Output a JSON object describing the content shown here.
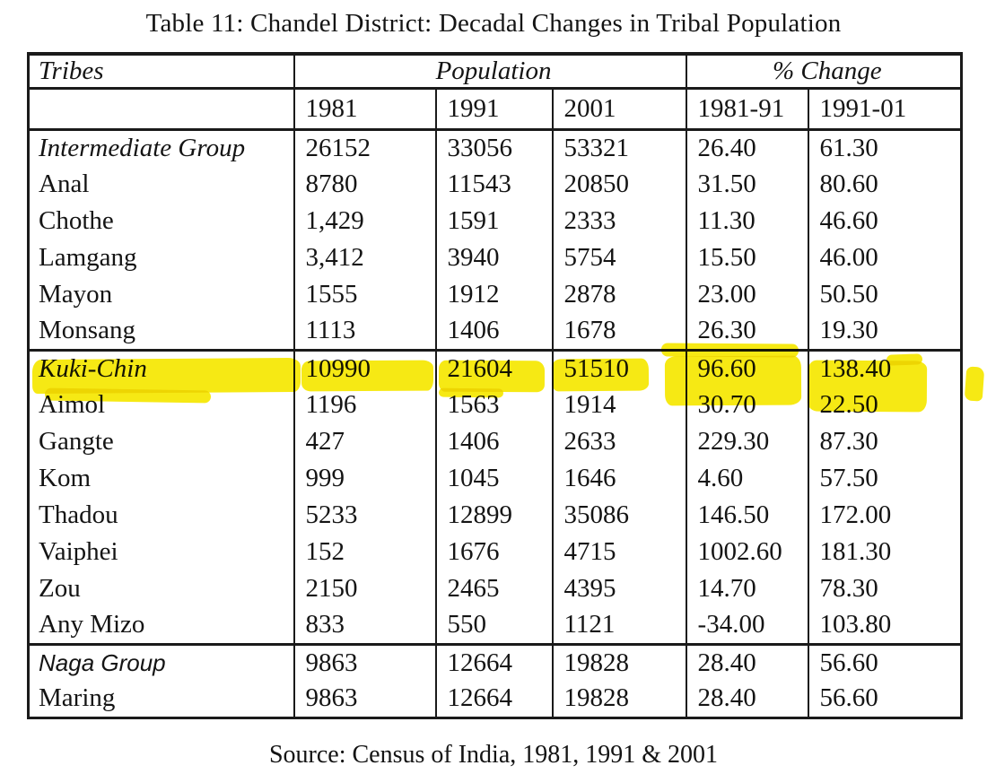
{
  "title": "Table 11: Chandel District: Decadal Changes in Tribal Population",
  "source_note": "Source: Census of India, 1981, 1991 & 2001",
  "highlight_color": "#f6e800",
  "table": {
    "columns": {
      "tribes_label": "Tribes",
      "population_label": "Population",
      "pct_change_label": "% Change",
      "year_headers": [
        "1981",
        "1991",
        "2001"
      ],
      "change_headers": [
        "1981-91",
        "1991-01"
      ]
    },
    "rows": [
      {
        "tribe": "Intermediate Group",
        "style": "group-serif",
        "highlighted": false,
        "group_end": false,
        "values": [
          "26152",
          "33056",
          "53321",
          "26.40",
          "61.30"
        ]
      },
      {
        "tribe": "Anal",
        "style": "normal",
        "highlighted": false,
        "group_end": false,
        "values": [
          "8780",
          "11543",
          "20850",
          "31.50",
          "80.60"
        ]
      },
      {
        "tribe": "Chothe",
        "style": "normal",
        "highlighted": false,
        "group_end": false,
        "values": [
          "1,429",
          "1591",
          "2333",
          "11.30",
          "46.60"
        ]
      },
      {
        "tribe": "Lamgang",
        "style": "normal",
        "highlighted": false,
        "group_end": false,
        "values": [
          "3,412",
          "3940",
          "5754",
          "15.50",
          "46.00"
        ]
      },
      {
        "tribe": "Mayon",
        "style": "normal",
        "highlighted": false,
        "group_end": false,
        "values": [
          "1555",
          "1912",
          "2878",
          "23.00",
          "50.50"
        ]
      },
      {
        "tribe": "Monsang",
        "style": "normal",
        "highlighted": false,
        "group_end": true,
        "values": [
          "1113",
          "1406",
          "1678",
          "26.30",
          "19.30"
        ]
      },
      {
        "tribe": "Kuki-Chin",
        "style": "group-serif",
        "highlighted": true,
        "group_end": false,
        "values": [
          "10990",
          "21604",
          "51510",
          "96.60",
          "138.40"
        ]
      },
      {
        "tribe": "Aimol",
        "style": "normal",
        "highlighted": false,
        "group_end": false,
        "values": [
          "1196",
          "1563",
          "1914",
          "30.70",
          "22.50"
        ]
      },
      {
        "tribe": "Gangte",
        "style": "normal",
        "highlighted": false,
        "group_end": false,
        "values": [
          "427",
          "1406",
          "2633",
          "229.30",
          "87.30"
        ]
      },
      {
        "tribe": "Kom",
        "style": "normal",
        "highlighted": false,
        "group_end": false,
        "values": [
          "999",
          "1045",
          "1646",
          "4.60",
          "57.50"
        ]
      },
      {
        "tribe": "Thadou",
        "style": "normal",
        "highlighted": false,
        "group_end": false,
        "values": [
          "5233",
          "12899",
          "35086",
          "146.50",
          "172.00"
        ]
      },
      {
        "tribe": "Vaiphei",
        "style": "normal",
        "highlighted": false,
        "group_end": false,
        "values": [
          "152",
          "1676",
          "4715",
          "1002.60",
          "181.30"
        ]
      },
      {
        "tribe": "Zou",
        "style": "normal",
        "highlighted": false,
        "group_end": false,
        "values": [
          "2150",
          "2465",
          "4395",
          "14.70",
          "78.30"
        ]
      },
      {
        "tribe": "Any Mizo",
        "style": "normal",
        "highlighted": false,
        "group_end": true,
        "values": [
          "833",
          "550",
          "1121",
          "-34.00",
          "103.80"
        ]
      },
      {
        "tribe": "Naga Group",
        "style": "group-sans",
        "highlighted": false,
        "group_end": false,
        "values": [
          "9863",
          "12664",
          "19828",
          "28.40",
          "56.60"
        ]
      },
      {
        "tribe": "Maring",
        "style": "normal",
        "highlighted": false,
        "group_end": false,
        "values": [
          "9863",
          "12664",
          "19828",
          "28.40",
          "56.60"
        ]
      }
    ]
  }
}
